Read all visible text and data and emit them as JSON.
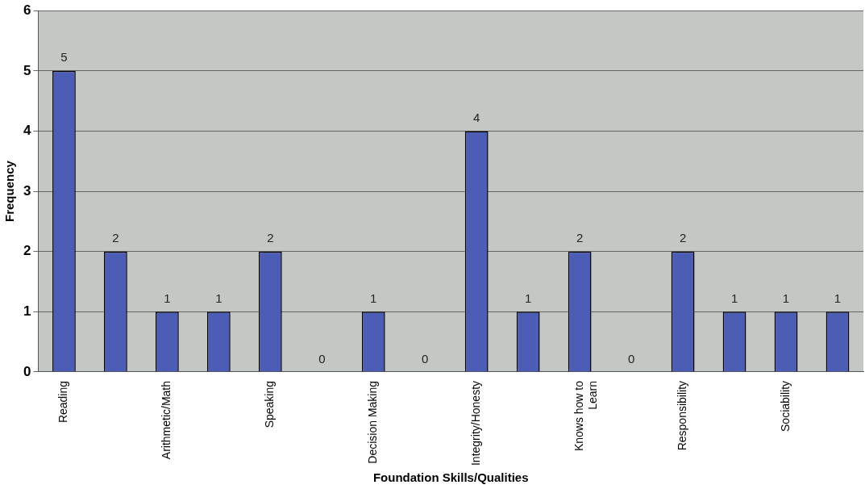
{
  "chart_data": {
    "type": "bar",
    "xlabel": "Foundation Skills/Qualities",
    "ylabel": "Frequency",
    "categories": [
      "Reading",
      null,
      "Arithmetic/Math",
      null,
      "Speaking",
      null,
      "Decision Making",
      null,
      "Integrity/Honesty",
      null,
      "Knows how to Learn",
      null,
      "Responsibility",
      null,
      "Sociability",
      null
    ],
    "values": [
      5,
      2,
      1,
      1,
      2,
      0,
      1,
      0,
      4,
      1,
      2,
      0,
      2,
      1,
      1,
      1
    ],
    "color": "#4b5db5",
    "ylim": [
      0,
      6
    ],
    "yticks": [
      0,
      1,
      2,
      3,
      4,
      5,
      6
    ],
    "grid": "y",
    "data_labels": true,
    "legend": false
  }
}
